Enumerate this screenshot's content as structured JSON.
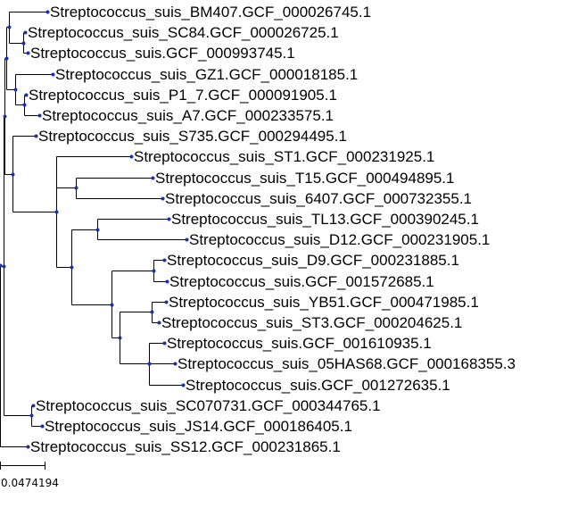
{
  "tree": {
    "leaves": [
      "Streptococcus_suis_BM407.GCF_000026745.1",
      "Streptococcus_suis_SC84.GCF_000026725.1",
      "Streptococcus_suis.GCF_000993745.1",
      "Streptococcus_suis_GZ1.GCF_000018185.1",
      "Streptococcus_suis_P1_7.GCF_000091905.1",
      "Streptococcus_suis_A7.GCF_000233575.1",
      "Streptococcus_suis_S735.GCF_000294495.1",
      "Streptococcus_suis_ST1.GCF_000231925.1",
      "Streptococcus_suis_T15.GCF_000494895.1",
      "Streptococcus_suis_6407.GCF_000732355.1",
      "Streptococcus_suis_TL13.GCF_000390245.1",
      "Streptococcus_suis_D12.GCF_000231905.1",
      "Streptococcus_suis_D9.GCF_000231885.1",
      "Streptococcus_suis.GCF_001572685.1",
      "Streptococcus_suis_YB51.GCF_000471985.1",
      "Streptococcus_suis_ST3.GCF_000204625.1",
      "Streptococcus_suis.GCF_001610935.1",
      "Streptococcus_suis_05HAS68.GCF_000168355.3",
      "Streptococcus_suis.GCF_001272635.1",
      "Streptococcus_suis_SC070731.GCF_000344765.1",
      "Streptococcus_suis_JS14.GCF_000186405.1",
      "Streptococcus_suis_SS12.GCF_000231865.1"
    ],
    "scale_bar_label": "0.0474194",
    "colors": {
      "branch": "#000000",
      "node": "#1a2fa8",
      "text": "#000000"
    }
  }
}
